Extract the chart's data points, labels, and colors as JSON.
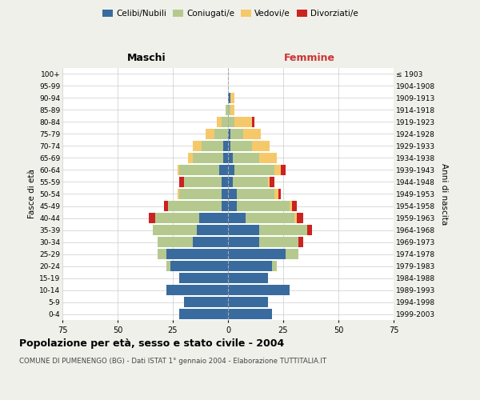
{
  "age_groups": [
    "0-4",
    "5-9",
    "10-14",
    "15-19",
    "20-24",
    "25-29",
    "30-34",
    "35-39",
    "40-44",
    "45-49",
    "50-54",
    "55-59",
    "60-64",
    "65-69",
    "70-74",
    "75-79",
    "80-84",
    "85-89",
    "90-94",
    "95-99",
    "100+"
  ],
  "birth_years": [
    "1999-2003",
    "1994-1998",
    "1989-1993",
    "1984-1988",
    "1979-1983",
    "1974-1978",
    "1969-1973",
    "1964-1968",
    "1959-1963",
    "1954-1958",
    "1949-1953",
    "1944-1948",
    "1939-1943",
    "1934-1938",
    "1929-1933",
    "1924-1928",
    "1919-1923",
    "1914-1918",
    "1909-1913",
    "1904-1908",
    "≤ 1903"
  ],
  "males": {
    "celibi": [
      22,
      20,
      28,
      22,
      26,
      28,
      16,
      14,
      13,
      3,
      3,
      3,
      4,
      2,
      2,
      0,
      0,
      0,
      0,
      0,
      0
    ],
    "coniugati": [
      0,
      0,
      0,
      0,
      2,
      4,
      16,
      20,
      20,
      24,
      19,
      17,
      18,
      14,
      10,
      6,
      3,
      1,
      0,
      0,
      0
    ],
    "vedovi": [
      0,
      0,
      0,
      0,
      0,
      0,
      0,
      0,
      0,
      0,
      1,
      0,
      1,
      2,
      4,
      4,
      2,
      0,
      0,
      0,
      0
    ],
    "divorziati": [
      0,
      0,
      0,
      0,
      0,
      0,
      0,
      0,
      3,
      2,
      0,
      2,
      0,
      0,
      0,
      0,
      0,
      0,
      0,
      0,
      0
    ]
  },
  "females": {
    "nubili": [
      20,
      18,
      28,
      18,
      20,
      26,
      14,
      14,
      8,
      4,
      4,
      2,
      3,
      2,
      1,
      1,
      0,
      0,
      1,
      0,
      0
    ],
    "coniugate": [
      0,
      0,
      0,
      0,
      2,
      6,
      18,
      22,
      22,
      24,
      17,
      16,
      18,
      12,
      10,
      6,
      3,
      1,
      0,
      0,
      0
    ],
    "vedove": [
      0,
      0,
      0,
      0,
      0,
      0,
      0,
      0,
      1,
      1,
      2,
      1,
      3,
      8,
      8,
      8,
      8,
      2,
      2,
      0,
      0
    ],
    "divorziate": [
      0,
      0,
      0,
      0,
      0,
      0,
      2,
      2,
      3,
      2,
      1,
      2,
      2,
      0,
      0,
      0,
      1,
      0,
      0,
      0,
      0
    ]
  },
  "colors": {
    "celibi": "#3a6b9e",
    "coniugati": "#b5c98e",
    "vedovi": "#f5c96a",
    "divorziati": "#cc2222"
  },
  "xlim": 75,
  "title": "Popolazione per età, sesso e stato civile - 2004",
  "subtitle": "COMUNE DI PUMENENGO (BG) - Dati ISTAT 1° gennaio 2004 - Elaborazione TUTTITALIA.IT",
  "ylabel_left": "Fasce di età",
  "ylabel_right": "Anni di nascita",
  "label_maschi": "Maschi",
  "label_femmine": "Femmine",
  "legend_labels": [
    "Celibi/Nubili",
    "Coniugati/e",
    "Vedovi/e",
    "Divorziati/e"
  ],
  "bg_color": "#f0f0ea",
  "plot_bg_color": "#ffffff"
}
